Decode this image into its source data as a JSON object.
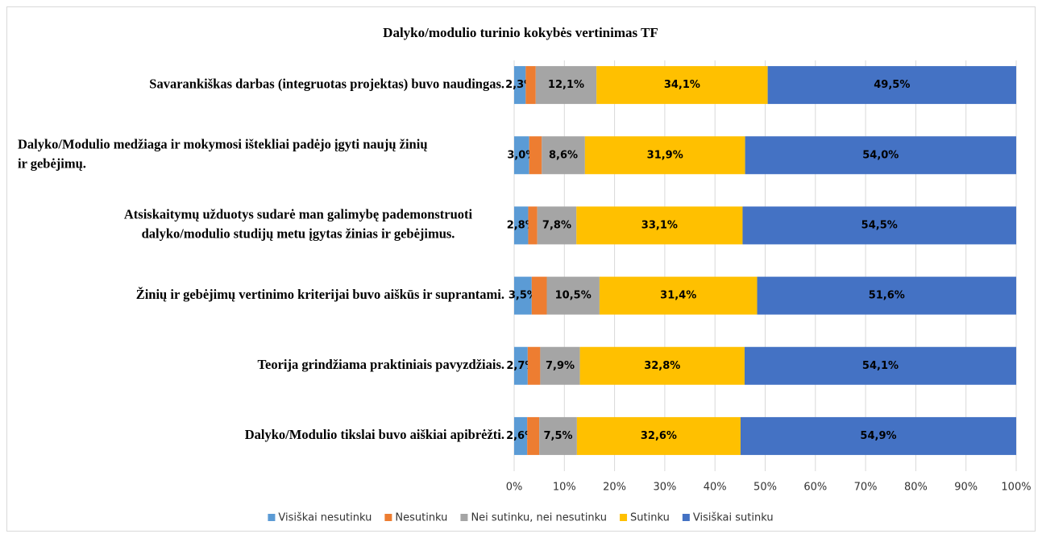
{
  "chart_data": {
    "type": "stacked_barh",
    "title": "Dalyko/modulio turinio kokybės vertinimas TF",
    "categories": [
      [
        "Savarankiškas darbas (integruotas projektas) buvo naudingas."
      ],
      [
        "Dalyko/Modulio medžiaga ir mokymosi ištekliai padėjo įgyti naujų žinių",
        "ir gebėjimų."
      ],
      [
        "Atsiskaitymų  užduotys sudarė man galimybę pademonstruoti",
        "dalyko/modulio studijų metu įgytas žinias ir gebėjimus."
      ],
      [
        "Žinių ir gebėjimų vertinimo kriterijai buvo aiškūs ir suprantami."
      ],
      [
        "Teorija grindžiama praktiniais pavyzdžiais."
      ],
      [
        "Dalyko/Modulio tikslai buvo aiškiai apibrėžti."
      ]
    ],
    "series": [
      {
        "name": "Visiškai nesutinku",
        "color": "#5b9bd5",
        "values": [
          2.3,
          3.0,
          2.8,
          3.5,
          2.7,
          2.6
        ],
        "value_labels": [
          "2,3%",
          "3,0%",
          "2,8%",
          "3,5%",
          "2,7%",
          "2,6%"
        ]
      },
      {
        "name": "Nesutinku",
        "color": "#ed7d31",
        "values": [
          2.0,
          2.5,
          1.8,
          3.0,
          2.5,
          2.4
        ]
      },
      {
        "name": "Nei sutinku, nei nesutinku",
        "color": "#a5a5a5",
        "values": [
          12.1,
          8.6,
          7.8,
          10.5,
          7.9,
          7.5
        ],
        "value_labels": [
          "12,1%",
          "8,6%",
          "7,8%",
          "10,5%",
          "7,9%",
          "7,5%"
        ]
      },
      {
        "name": "Sutinku",
        "color": "#ffc000",
        "values": [
          34.1,
          31.9,
          33.1,
          31.4,
          32.8,
          32.6
        ],
        "value_labels": [
          "34,1%",
          "31,9%",
          "33,1%",
          "31,4%",
          "32,8%",
          "32,6%"
        ]
      },
      {
        "name": "Visiškai sutinku",
        "color": "#4472c4",
        "values": [
          49.5,
          54.0,
          54.5,
          51.6,
          54.1,
          54.9
        ],
        "value_labels": [
          "49,5%",
          "54,0%",
          "54,5%",
          "51,6%",
          "54,1%",
          "54,9%"
        ]
      }
    ],
    "xlim": [
      0,
      100
    ],
    "xticks": [
      {
        "value": 0,
        "label": "0%"
      },
      {
        "value": 10,
        "label": "10%"
      },
      {
        "value": 20,
        "label": "20%"
      },
      {
        "value": 30,
        "label": "30%"
      },
      {
        "value": 40,
        "label": "40%"
      },
      {
        "value": 50,
        "label": "50%"
      },
      {
        "value": 60,
        "label": "60%"
      },
      {
        "value": 70,
        "label": "70%"
      },
      {
        "value": 80,
        "label": "80%"
      },
      {
        "value": 90,
        "label": "90%"
      },
      {
        "value": 100,
        "label": "100%"
      }
    ],
    "grid": true,
    "legend": "bottom"
  }
}
